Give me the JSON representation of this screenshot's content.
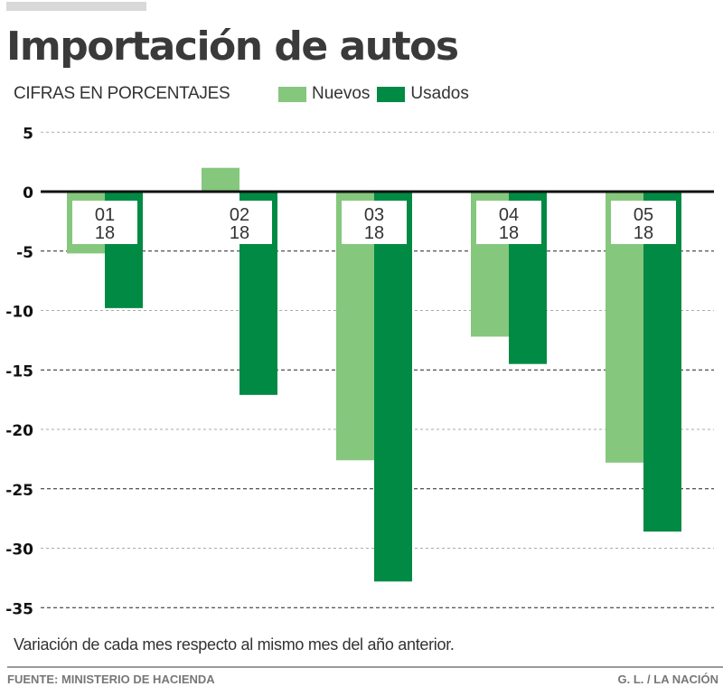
{
  "header": {
    "title": "Importación de autos",
    "subtitle": "CIFRAS EN PORCENTAJES"
  },
  "footer": {
    "note": "Variación de cada mes respecto al mismo mes del año anterior.",
    "source": "FUENTE: MINISTERIO DE HACIENDA",
    "credit": "G. L. / LA NACIÓN"
  },
  "colors": {
    "nuevos": "#85c77d",
    "usados": "#008a43"
  },
  "chart_data": {
    "type": "bar",
    "title": "Importación de autos",
    "subtitle": "CIFRAS EN PORCENTAJES",
    "xlabel": "",
    "ylabel": "",
    "ylim": [
      -35,
      5
    ],
    "yticks": [
      5,
      0,
      -5,
      -10,
      -15,
      -20,
      -25,
      -30,
      -35
    ],
    "grid": true,
    "legend": "top",
    "categories": [
      {
        "month": "01",
        "year": "18"
      },
      {
        "month": "02",
        "year": "18"
      },
      {
        "month": "03",
        "year": "18"
      },
      {
        "month": "04",
        "year": "18"
      },
      {
        "month": "05",
        "year": "18"
      }
    ],
    "series": [
      {
        "name": "Nuevos",
        "color": "#85c77d",
        "values": [
          -5.2,
          2.0,
          -22.6,
          -12.2,
          -22.8
        ]
      },
      {
        "name": "Usados",
        "color": "#008a43",
        "values": [
          -9.8,
          -17.1,
          -32.8,
          -14.5,
          -28.6
        ]
      }
    ],
    "annotation": "Variación de cada mes respecto al mismo mes del año anterior."
  }
}
